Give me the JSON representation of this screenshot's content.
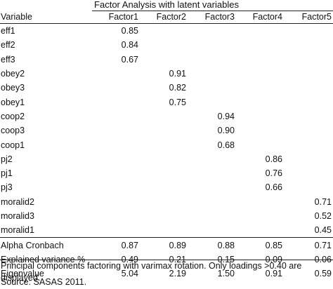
{
  "title": "Factor Analysis with latent variables",
  "headers": [
    "Variable",
    "Factor1",
    "Factor2",
    "Factor3",
    "Factor4",
    "Factor5"
  ],
  "loadings": [
    {
      "variable": "eff1",
      "values": [
        "0.85",
        "",
        "",
        "",
        ""
      ]
    },
    {
      "variable": "eff2",
      "values": [
        "0.84",
        "",
        "",
        "",
        ""
      ]
    },
    {
      "variable": "eff3",
      "values": [
        "0.67",
        "",
        "",
        "",
        ""
      ]
    },
    {
      "variable": "obey2",
      "values": [
        "",
        "0.91",
        "",
        "",
        ""
      ]
    },
    {
      "variable": "obey3",
      "values": [
        "",
        "0.82",
        "",
        "",
        ""
      ]
    },
    {
      "variable": "obey1",
      "values": [
        "",
        "0.75",
        "",
        "",
        ""
      ]
    },
    {
      "variable": "coop2",
      "values": [
        "",
        "",
        "0.94",
        "",
        ""
      ]
    },
    {
      "variable": "coop3",
      "values": [
        "",
        "",
        "0.90",
        "",
        ""
      ]
    },
    {
      "variable": "coop1",
      "values": [
        "",
        "",
        "0.68",
        "",
        ""
      ]
    },
    {
      "variable": "pj2",
      "values": [
        "",
        "",
        "",
        "0.86",
        ""
      ]
    },
    {
      "variable": "pj1",
      "values": [
        "",
        "",
        "",
        "0.76",
        ""
      ]
    },
    {
      "variable": "pj3",
      "values": [
        "",
        "",
        "",
        "0.66",
        ""
      ]
    },
    {
      "variable": "moralid2",
      "values": [
        "",
        "",
        "",
        "",
        "0.71"
      ]
    },
    {
      "variable": "moralid3",
      "values": [
        "",
        "",
        "",
        "",
        "0.52"
      ]
    },
    {
      "variable": "moralid1",
      "values": [
        "",
        "",
        "",
        "",
        "0.45"
      ]
    }
  ],
  "summary": [
    {
      "variable": "Alpha Cronbach",
      "values": [
        "0.87",
        "0.89",
        "0.88",
        "0.85",
        "0.71"
      ]
    },
    {
      "variable": "Explained variance %",
      "values": [
        "0.49",
        "0.21",
        "0.15",
        "0.09",
        "0.06"
      ]
    },
    {
      "variable": "Eigenvalue",
      "values": [
        "5.04",
        "2.19",
        "1.50",
        "0.91",
        "0.59"
      ]
    }
  ],
  "note": "Principal components factoring with varimax rotation. Only loadings >0.40 are displayed.",
  "source": "Source: SASAS 2011."
}
